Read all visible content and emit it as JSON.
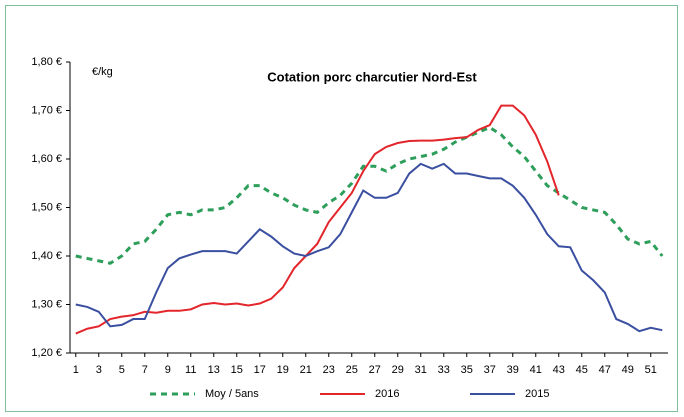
{
  "chart_data": {
    "type": "line",
    "title": "Cotation porc charcutier Nord-Est",
    "y_label": "€/kg",
    "x": [
      1,
      2,
      3,
      4,
      5,
      6,
      7,
      8,
      9,
      10,
      11,
      12,
      13,
      14,
      15,
      16,
      17,
      18,
      19,
      20,
      21,
      22,
      23,
      24,
      25,
      26,
      27,
      28,
      29,
      30,
      31,
      32,
      33,
      34,
      35,
      36,
      37,
      38,
      39,
      40,
      41,
      42,
      43,
      44,
      45,
      46,
      47,
      48,
      49,
      50,
      51,
      52
    ],
    "xlim": [
      0.5,
      52.5
    ],
    "xticks": [
      1,
      3,
      5,
      7,
      9,
      11,
      13,
      15,
      17,
      19,
      21,
      23,
      25,
      27,
      29,
      31,
      33,
      35,
      37,
      39,
      41,
      43,
      45,
      47,
      49,
      51
    ],
    "ylim": [
      1.2,
      1.8
    ],
    "yticks": [
      {
        "value": 1.2,
        "label": "1,20 €"
      },
      {
        "value": 1.3,
        "label": "1,30 €"
      },
      {
        "value": 1.4,
        "label": "1,40 €"
      },
      {
        "value": 1.5,
        "label": "1,50 €"
      },
      {
        "value": 1.6,
        "label": "1,60 €"
      },
      {
        "value": 1.7,
        "label": "1,70 €"
      },
      {
        "value": 1.8,
        "label": "1,80 €"
      }
    ],
    "grid": false,
    "legend": "bottom",
    "series": [
      {
        "name": "Moy / 5ans",
        "color": "#2e9e5b",
        "style": "dashed",
        "values": [
          1.4,
          1.395,
          1.39,
          1.385,
          1.4,
          1.425,
          1.43,
          1.455,
          1.485,
          1.49,
          1.485,
          1.495,
          1.495,
          1.5,
          1.52,
          1.545,
          1.545,
          1.53,
          1.52,
          1.505,
          1.495,
          1.49,
          1.51,
          1.525,
          1.55,
          1.585,
          1.585,
          1.575,
          1.59,
          1.6,
          1.605,
          1.61,
          1.62,
          1.635,
          1.645,
          1.655,
          1.665,
          1.65,
          1.625,
          1.605,
          1.575,
          1.545,
          1.53,
          1.515,
          1.5,
          1.495,
          1.49,
          1.465,
          1.435,
          1.425,
          1.43,
          1.4
        ]
      },
      {
        "name": "2016",
        "color": "#e3262b",
        "style": "solid",
        "values": [
          1.24,
          1.25,
          1.255,
          1.27,
          1.275,
          1.278,
          1.285,
          1.283,
          1.287,
          1.287,
          1.29,
          1.3,
          1.303,
          1.3,
          1.302,
          1.298,
          1.302,
          1.312,
          1.335,
          1.375,
          1.4,
          1.425,
          1.47,
          1.5,
          1.53,
          1.575,
          1.61,
          1.625,
          1.633,
          1.637,
          1.638,
          1.638,
          1.64,
          1.643,
          1.645,
          1.66,
          1.67,
          1.71,
          1.71,
          1.69,
          1.65,
          1.595,
          1.525,
          null,
          null,
          null,
          null,
          null,
          null,
          null,
          null,
          null
        ]
      },
      {
        "name": "2015",
        "color": "#3a4fa0",
        "style": "solid",
        "values": [
          1.3,
          1.295,
          1.285,
          1.255,
          1.258,
          1.27,
          1.27,
          1.325,
          1.375,
          1.395,
          1.403,
          1.41,
          1.41,
          1.41,
          1.405,
          1.43,
          1.455,
          1.44,
          1.42,
          1.405,
          1.4,
          1.41,
          1.418,
          1.445,
          1.49,
          1.535,
          1.52,
          1.52,
          1.53,
          1.57,
          1.59,
          1.58,
          1.59,
          1.57,
          1.57,
          1.565,
          1.56,
          1.56,
          1.545,
          1.52,
          1.485,
          1.445,
          1.42,
          1.418,
          1.37,
          1.35,
          1.325,
          1.27,
          1.26,
          1.245,
          1.252,
          1.247
        ]
      }
    ]
  }
}
